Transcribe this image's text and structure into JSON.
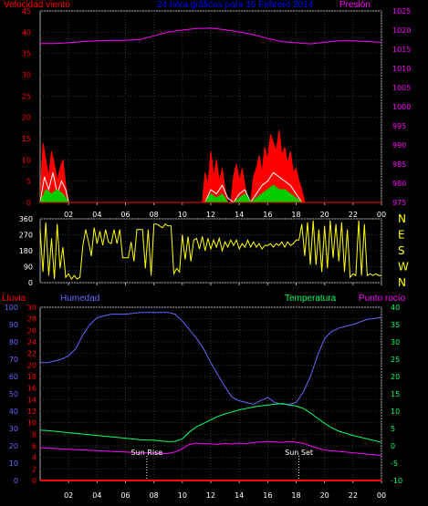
{
  "header": {
    "title": "24 hora gráficos para 16 Febrero 2014",
    "wind_speed_label": "Velocidad viento",
    "pressure_label": "Presión"
  },
  "middle": {
    "compass_labels": [
      "N",
      "W",
      "S",
      "E",
      "N"
    ]
  },
  "lower_header": {
    "rain_label": "Lluvia",
    "humidity_label": "Humedad",
    "temperature_label": "Temperatura",
    "dewpoint_label": "Punto rocío"
  },
  "annotations": {
    "sun_rise": "Sun Rise",
    "sun_set": "Sun Set"
  },
  "colors": {
    "wind_speed": "#ff0000",
    "gust": "#ffffff",
    "wind_avg": "#00cc00",
    "pressure": "#ff00ff",
    "direction": "#ffff00",
    "humidity": "#6666ff",
    "temperature": "#00ff66",
    "dewpoint": "#ff00ff",
    "rain": "#ff0000",
    "title": "#0000ff"
  },
  "chart_data": [
    {
      "type": "line",
      "title": "24 hora gráficos para 16 Febrero 2014",
      "x_tick_labels": [
        "02",
        "04",
        "06",
        "08",
        "10",
        "12",
        "14",
        "16",
        "18",
        "20",
        "22",
        "00"
      ],
      "x_hours": [
        2,
        4,
        6,
        8,
        10,
        12,
        14,
        16,
        18,
        20,
        22,
        24
      ],
      "xlim": [
        0,
        24
      ],
      "ylabel": "Velocidad viento",
      "ylim": [
        0,
        45
      ],
      "y_ticks": [
        0,
        5,
        10,
        15,
        20,
        25,
        30,
        35,
        40,
        45
      ],
      "y2label": "Presión",
      "y2lim": [
        975,
        1025
      ],
      "y2_ticks": [
        975,
        980,
        985,
        990,
        995,
        1000,
        1005,
        1010,
        1015,
        1020,
        1025
      ],
      "grid": true,
      "series": [
        {
          "axis": "y2",
          "x": [
            0,
            1,
            2,
            3,
            4,
            5,
            6,
            7,
            8,
            9,
            10,
            11,
            12,
            13,
            14,
            15,
            16,
            17,
            18,
            19,
            20,
            21,
            22,
            23,
            24
          ],
          "values": [
            1016.5,
            1016.5,
            1016.7,
            1017,
            1017.2,
            1017.3,
            1017.3,
            1017.5,
            1018.5,
            1019.5,
            1020,
            1020.4,
            1020.5,
            1020.1,
            1019.5,
            1018.8,
            1017.8,
            1017,
            1016.7,
            1016.4,
            1016.8,
            1017.2,
            1017.2,
            1017,
            1016.8
          ]
        },
        {
          "axis": "y",
          "x": [
            0,
            0.2,
            0.4,
            0.6,
            0.8,
            1,
            1.2,
            1.4,
            1.6,
            1.8,
            2,
            11.4,
            11.6,
            11.8,
            12,
            12.2,
            12.4,
            12.6,
            12.8,
            13,
            13.2,
            13.4,
            13.6,
            13.8,
            14,
            14.2,
            14.4,
            14.6,
            14.8,
            15,
            15.2,
            15.4,
            15.6,
            15.8,
            16,
            16.2,
            16.4,
            16.6,
            16.8,
            17,
            17.2,
            17.4,
            17.6,
            17.8,
            18,
            18.2,
            18.4,
            18.6
          ],
          "values": [
            0,
            14,
            10,
            6,
            12,
            9,
            5,
            8,
            10,
            4,
            0,
            0,
            7,
            4,
            12,
            6,
            10,
            5,
            8,
            3,
            0,
            0,
            6,
            9,
            5,
            8,
            4,
            0,
            0,
            6,
            8,
            11,
            7,
            13,
            10,
            16,
            14,
            12,
            17,
            11,
            13,
            9,
            12,
            7,
            8,
            5,
            3,
            0
          ]
        },
        {
          "axis": "y",
          "x": [
            0,
            0.3,
            0.6,
            0.9,
            1.2,
            1.5,
            1.8,
            2,
            11.6,
            12,
            12.4,
            12.8,
            13.2,
            13.6,
            14,
            14.4,
            14.8,
            15.2,
            15.6,
            16,
            16.4,
            16.8,
            17.2,
            17.6,
            18,
            18.4
          ],
          "values": [
            0,
            6,
            3,
            7,
            2,
            5,
            3,
            0,
            0,
            3,
            2,
            4,
            1,
            0,
            2,
            3,
            0,
            2,
            4,
            5,
            7,
            6,
            5,
            4,
            2,
            0
          ]
        },
        {
          "axis": "y",
          "x": [
            0,
            0.4,
            0.8,
            1.2,
            1.6,
            2,
            11.6,
            12,
            12.4,
            12.8,
            13.2,
            13.6,
            14,
            14.4,
            14.8,
            15.2,
            15.6,
            16,
            16.4,
            16.8,
            17.2,
            17.6,
            18,
            18.4
          ],
          "values": [
            0,
            3,
            2,
            3,
            2,
            0,
            0,
            2,
            1,
            2,
            0,
            0,
            1,
            2,
            0,
            1,
            2,
            3,
            4,
            3,
            3,
            2,
            1,
            0
          ]
        }
      ]
    },
    {
      "type": "line",
      "ylabel": "",
      "ylim": [
        0,
        360
      ],
      "y_ticks": [
        0,
        90,
        180,
        270,
        360
      ],
      "xlim": [
        0,
        24
      ],
      "grid": true,
      "series": [
        {
          "x": [
            0,
            0.2,
            0.4,
            0.6,
            0.8,
            1,
            1.2,
            1.4,
            1.6,
            1.8,
            2,
            2.2,
            2.4,
            2.6,
            2.8,
            3,
            3.2,
            3.4,
            3.6,
            3.8,
            4,
            4.2,
            4.4,
            4.6,
            4.8,
            5,
            5.2,
            5.4,
            5.6,
            5.8,
            6,
            6.2,
            6.4,
            6.6,
            6.8,
            7,
            7.2,
            7.4,
            7.6,
            7.8,
            8,
            8.2,
            8.4,
            8.6,
            8.8,
            9,
            9.2,
            9.4,
            9.6,
            9.8,
            10,
            10.2,
            10.4,
            10.6,
            10.8,
            11,
            11.2,
            11.4,
            11.6,
            11.8,
            12,
            12.2,
            12.4,
            12.6,
            12.8,
            13,
            13.2,
            13.4,
            13.6,
            13.8,
            14,
            14.2,
            14.4,
            14.6,
            14.8,
            15,
            15.2,
            15.4,
            15.6,
            15.8,
            16,
            16.2,
            16.4,
            16.6,
            16.8,
            17,
            17.2,
            17.4,
            17.6,
            17.8,
            18,
            18.2,
            18.4,
            18.6,
            18.8,
            19,
            19.2,
            19.4,
            19.6,
            19.8,
            20,
            20.2,
            20.4,
            20.6,
            20.8,
            21,
            21.2,
            21.4,
            21.6,
            21.8,
            22,
            22.2,
            22.4,
            22.6,
            22.8,
            23,
            23.2,
            23.4,
            23.6,
            23.8,
            24
          ],
          "values": [
            300,
            60,
            340,
            40,
            250,
            20,
            330,
            80,
            200,
            30,
            50,
            20,
            40,
            20,
            30,
            210,
            300,
            230,
            150,
            310,
            220,
            290,
            210,
            300,
            230,
            220,
            300,
            220,
            300,
            140,
            140,
            140,
            230,
            120,
            300,
            300,
            300,
            80,
            300,
            40,
            330,
            330,
            320,
            310,
            330,
            320,
            320,
            50,
            80,
            60,
            270,
            130,
            260,
            120,
            240,
            250,
            190,
            260,
            180,
            250,
            190,
            240,
            200,
            250,
            180,
            230,
            200,
            240,
            210,
            240,
            190,
            220,
            200,
            240,
            200,
            230,
            200,
            220,
            190,
            210,
            210,
            220,
            200,
            220,
            210,
            230,
            200,
            230,
            210,
            220,
            240,
            240,
            330,
            150,
            340,
            100,
            350,
            100,
            300,
            60,
            320,
            80,
            350,
            140,
            330,
            120,
            340,
            60,
            300,
            30,
            50,
            40,
            350,
            40,
            330,
            40,
            50,
            40,
            50,
            40,
            40
          ]
        }
      ]
    },
    {
      "type": "line",
      "ylabel": "Lluvia",
      "ylim": [
        0,
        30
      ],
      "y_ticks": [
        0,
        2,
        4,
        6,
        8,
        10,
        12,
        14,
        16,
        18,
        20,
        22,
        24,
        26,
        28,
        30
      ],
      "humidity_ylim": [
        0,
        100
      ],
      "humidity_ticks": [
        0,
        10,
        20,
        30,
        40,
        50,
        60,
        70,
        80,
        90,
        100
      ],
      "temp_ylim": [
        -10,
        40
      ],
      "temp_ticks": [
        -10,
        -5,
        0,
        5,
        10,
        15,
        20,
        25,
        30,
        35,
        40
      ],
      "xlim": [
        0,
        24
      ],
      "grid": true,
      "series": [
        {
          "axis": "humidity",
          "x": [
            0,
            0.5,
            1,
            1.5,
            2,
            2.5,
            3,
            3.5,
            4,
            4.5,
            5,
            6,
            7,
            8,
            8.5,
            9,
            9.5,
            10,
            10.5,
            11,
            11.5,
            12,
            12.5,
            13,
            13.5,
            14,
            14.5,
            15,
            15.5,
            16,
            16.5,
            17,
            17.5,
            18,
            18.5,
            19,
            19.5,
            20,
            20.5,
            21,
            22,
            23,
            24
          ],
          "values": [
            68,
            68,
            69,
            70,
            72,
            76,
            84,
            90,
            94,
            95,
            96,
            96,
            97,
            97,
            97,
            97,
            96,
            92,
            87,
            82,
            76,
            68,
            61,
            54,
            48,
            46,
            45,
            44,
            46,
            48,
            45,
            44,
            44,
            45,
            51,
            60,
            72,
            82,
            86,
            88,
            90,
            93,
            94
          ]
        },
        {
          "axis": "temp",
          "x": [
            0,
            0.5,
            1,
            1.5,
            2,
            2.5,
            3,
            4,
            5,
            6,
            7,
            8,
            8.5,
            9,
            9.5,
            10,
            10.5,
            11,
            11.5,
            12,
            12.5,
            13,
            13.5,
            14,
            14.5,
            15,
            15.5,
            16,
            16.5,
            17,
            17.5,
            18,
            18.5,
            19,
            19.5,
            20,
            20.5,
            21,
            22,
            23,
            24
          ],
          "values": [
            4.5,
            4.4,
            4.2,
            4,
            3.8,
            3.6,
            3.4,
            3,
            2.6,
            2.2,
            1.8,
            1.6,
            1.4,
            1.2,
            1.3,
            2,
            4,
            5.5,
            6.5,
            7.5,
            8.5,
            9.2,
            9.8,
            10.4,
            10.8,
            11.2,
            11.5,
            11.8,
            12,
            12.2,
            11.8,
            11.5,
            10.8,
            9.5,
            8,
            6.5,
            5.2,
            4.2,
            3,
            2,
            1
          ]
        },
        {
          "axis": "temp",
          "x": [
            0,
            0.5,
            1,
            1.5,
            2,
            2.5,
            3,
            4,
            5,
            6,
            7,
            8,
            8.5,
            9,
            9.5,
            10,
            10.5,
            11,
            11.5,
            12,
            12.5,
            13,
            13.5,
            14,
            14.5,
            15,
            15.5,
            16,
            16.5,
            17,
            17.5,
            18,
            18.5,
            19,
            19.5,
            20,
            21,
            22,
            23,
            24
          ],
          "values": [
            -0.5,
            -0.7,
            -0.7,
            -0.9,
            -1,
            -1.1,
            -1.2,
            -1.4,
            -1.6,
            -1.8,
            -2,
            -2.1,
            -2.3,
            -2.2,
            -1.8,
            -0.8,
            0.4,
            0.8,
            0.6,
            0.6,
            0.4,
            0.7,
            0.5,
            0.8,
            0.6,
            1,
            1.1,
            1.3,
            1.1,
            1,
            1.3,
            1,
            0.7,
            0,
            -0.6,
            -1.2,
            -1.6,
            -2,
            -2.4,
            -2.8
          ]
        },
        {
          "axis": "rain",
          "x": [
            0,
            24
          ],
          "values": [
            0,
            0
          ]
        }
      ]
    }
  ]
}
